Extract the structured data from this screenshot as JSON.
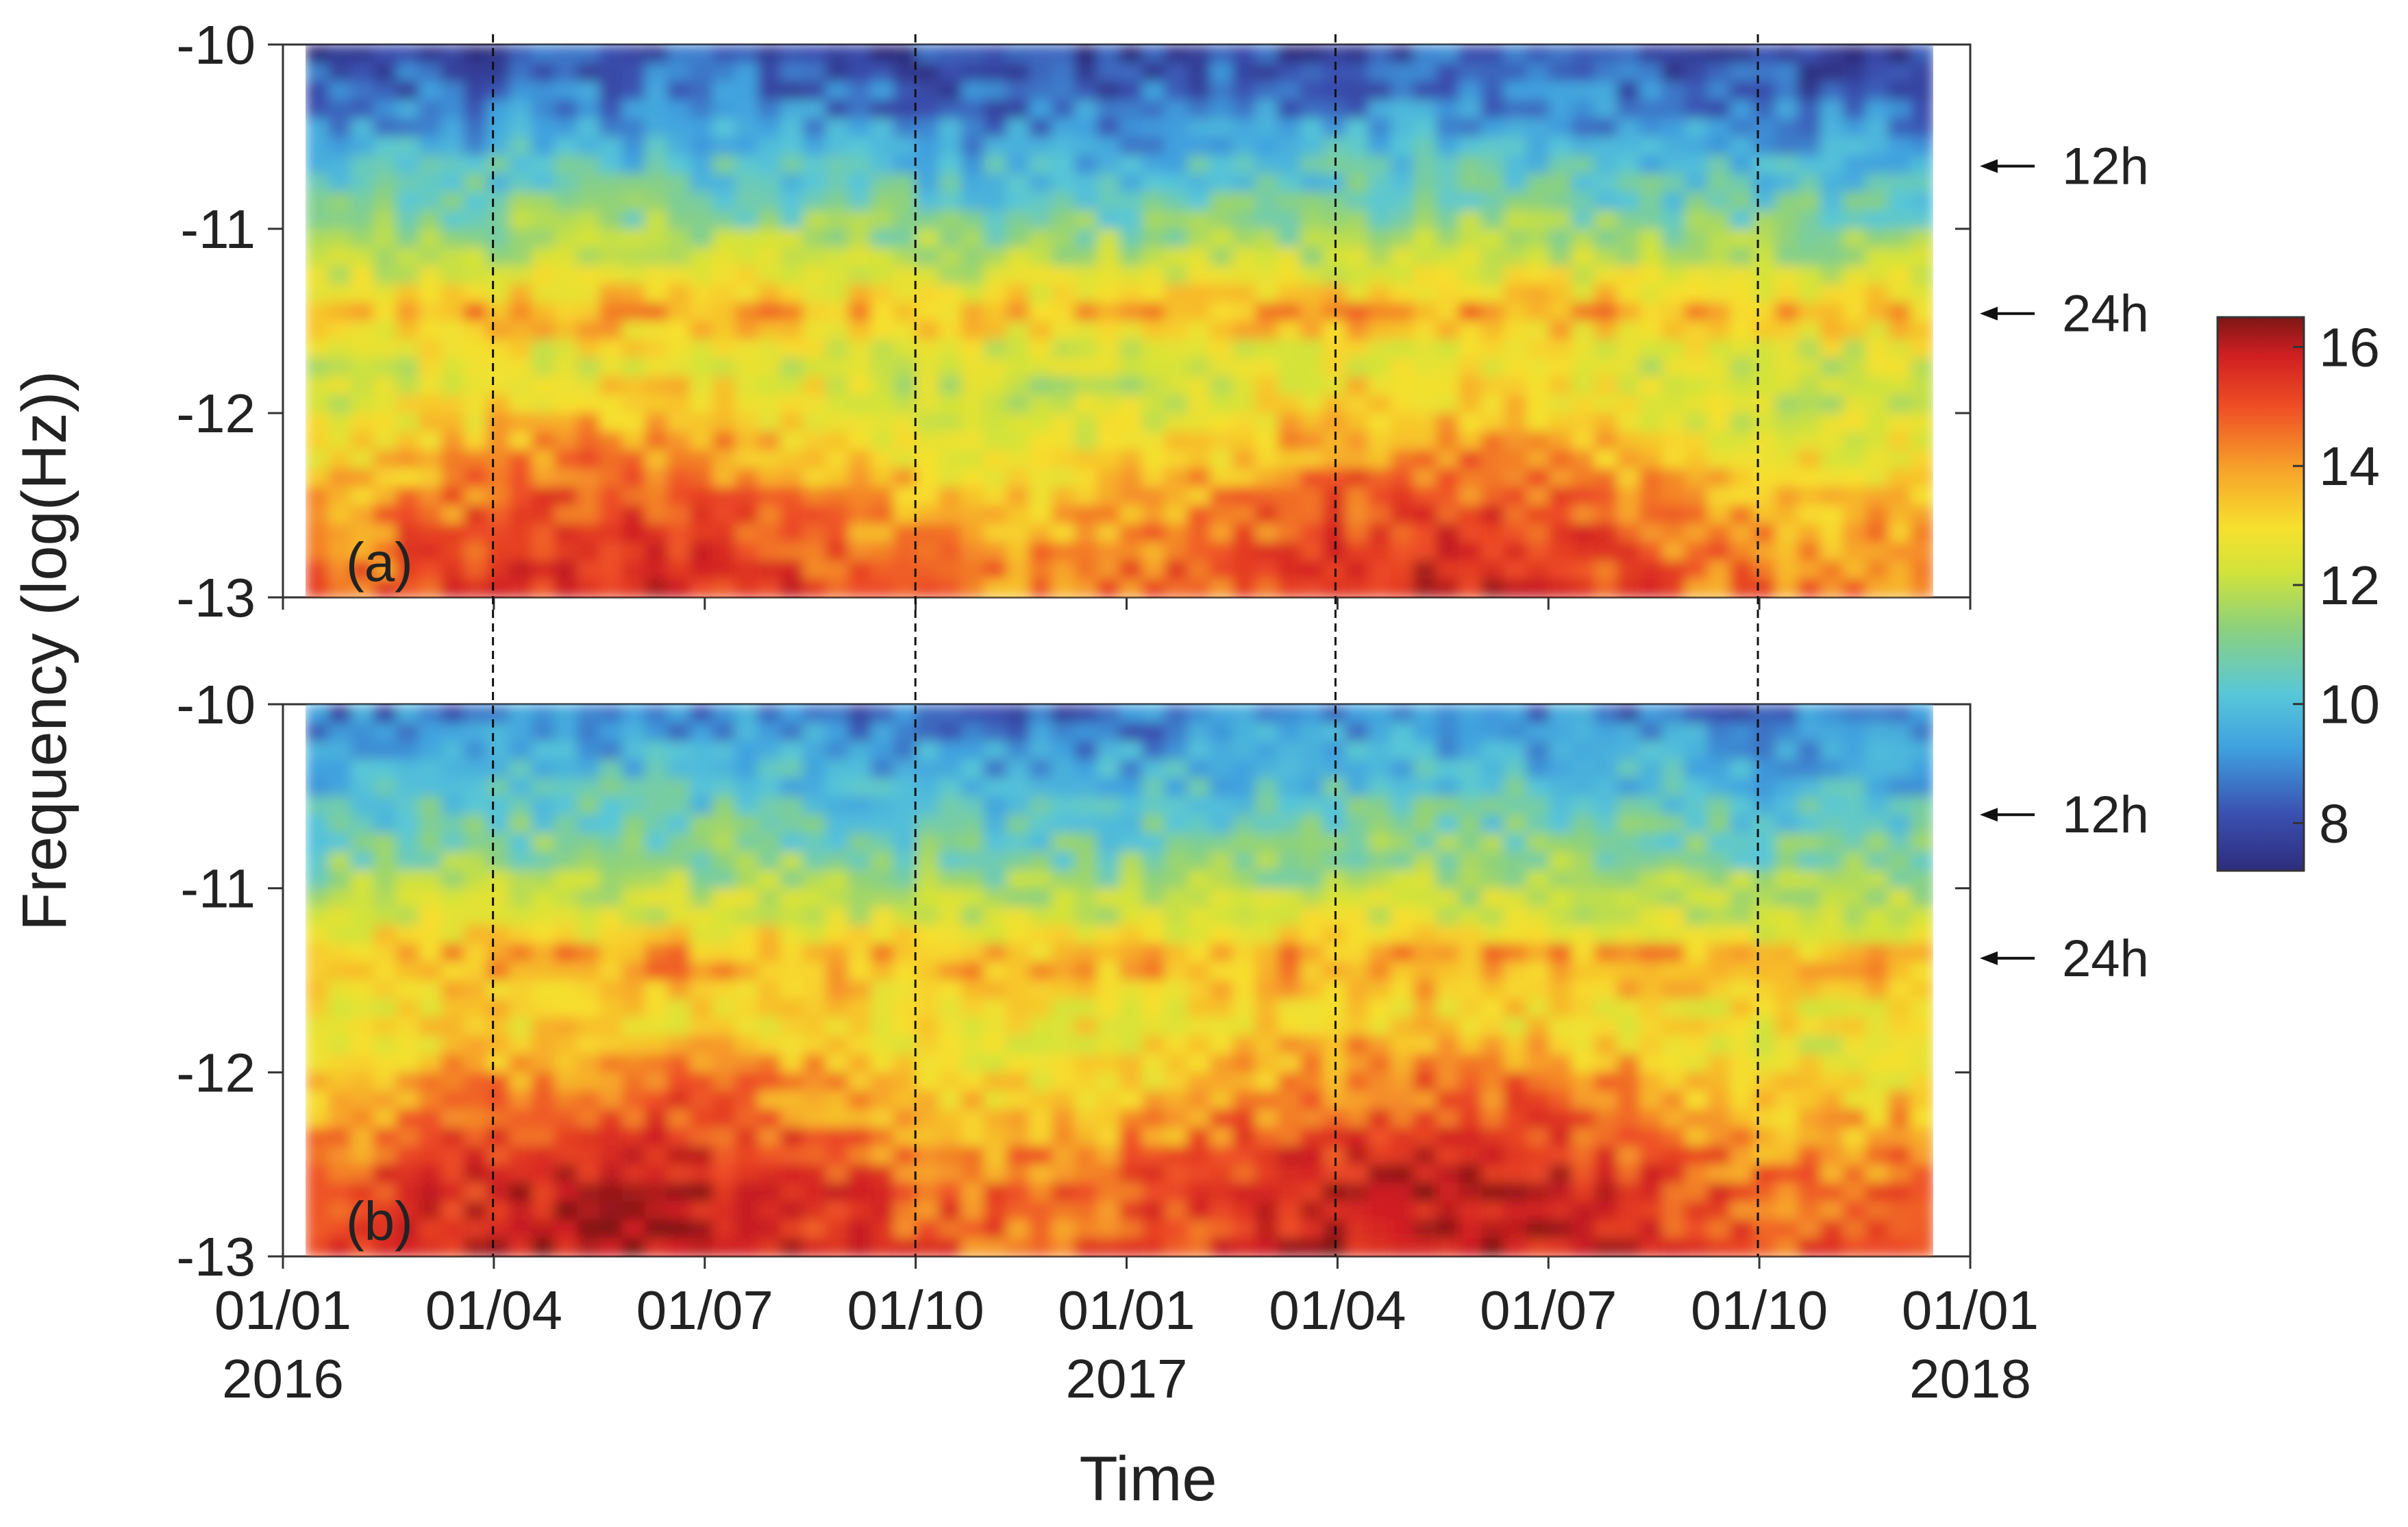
{
  "chart_data": [
    {
      "type": "heatmap",
      "panel_label": "(a)",
      "title": "",
      "xlabel": "Time",
      "ylabel": "Frequency (log(Hz))",
      "x_range": [
        "2016-01-01",
        "2018-01-01"
      ],
      "ylim": [
        -13,
        -10
      ],
      "y_ticks": [
        -10,
        -11,
        -12,
        -13
      ],
      "x_tick_labels": [
        {
          "line1": "01/01",
          "line2": "2016"
        },
        {
          "line1": "01/04",
          "line2": ""
        },
        {
          "line1": "01/07",
          "line2": ""
        },
        {
          "line1": "01/10",
          "line2": ""
        },
        {
          "line1": "01/01",
          "line2": "2017"
        },
        {
          "line1": "01/04",
          "line2": ""
        },
        {
          "line1": "01/07",
          "line2": ""
        },
        {
          "line1": "01/10",
          "line2": ""
        },
        {
          "line1": "01/01",
          "line2": "2018"
        }
      ],
      "dashed_lines_at": [
        "2016-04-01",
        "2016-10-01",
        "2017-04-01",
        "2017-10-01"
      ],
      "annotations": [
        {
          "text": "12h",
          "y": -10.66
        },
        {
          "text": "24h",
          "y": -11.46
        }
      ],
      "colormap": "jet",
      "zlim": [
        7.2,
        16.5
      ],
      "value_profile_by_frequency": {
        "y": [
          -10.0,
          -10.3,
          -10.6,
          -10.9,
          -11.2,
          -11.46,
          -11.7,
          -12.0,
          -12.3,
          -12.6,
          -13.0
        ],
        "typical_value": [
          7.8,
          8.6,
          9.6,
          10.6,
          11.8,
          13.6,
          12.0,
          12.6,
          13.5,
          14.3,
          14.8
        ]
      },
      "grid": false
    },
    {
      "type": "heatmap",
      "panel_label": "(b)",
      "title": "",
      "xlabel": "Time",
      "ylabel": "Frequency (log(Hz))",
      "x_range": [
        "2016-01-01",
        "2018-01-01"
      ],
      "ylim": [
        -13,
        -10
      ],
      "y_ticks": [
        -10,
        -11,
        -12,
        -13
      ],
      "dashed_lines_at": [
        "2016-04-01",
        "2016-10-01",
        "2017-04-01",
        "2017-10-01"
      ],
      "annotations": [
        {
          "text": "12h",
          "y": -10.6
        },
        {
          "text": "24h",
          "y": -11.38
        }
      ],
      "colormap": "jet",
      "zlim": [
        7.2,
        16.5
      ],
      "value_profile_by_frequency": {
        "y": [
          -10.0,
          -10.3,
          -10.6,
          -10.9,
          -11.2,
          -11.38,
          -11.7,
          -12.0,
          -12.3,
          -12.6,
          -13.0
        ],
        "typical_value": [
          8.6,
          9.4,
          10.2,
          11.0,
          12.2,
          13.8,
          12.6,
          13.4,
          14.2,
          15.0,
          15.2
        ]
      },
      "grid": false
    }
  ],
  "colorbar": {
    "ticks": [
      8,
      10,
      12,
      14,
      16
    ],
    "range": [
      7.2,
      16.5
    ],
    "colors": [
      "#2e2c7c",
      "#3a4fb0",
      "#3fa0df",
      "#58c7d8",
      "#8dd17b",
      "#d2e33a",
      "#f7e02e",
      "#f7a62a",
      "#ee4d25",
      "#d11f22",
      "#7e1616"
    ]
  }
}
